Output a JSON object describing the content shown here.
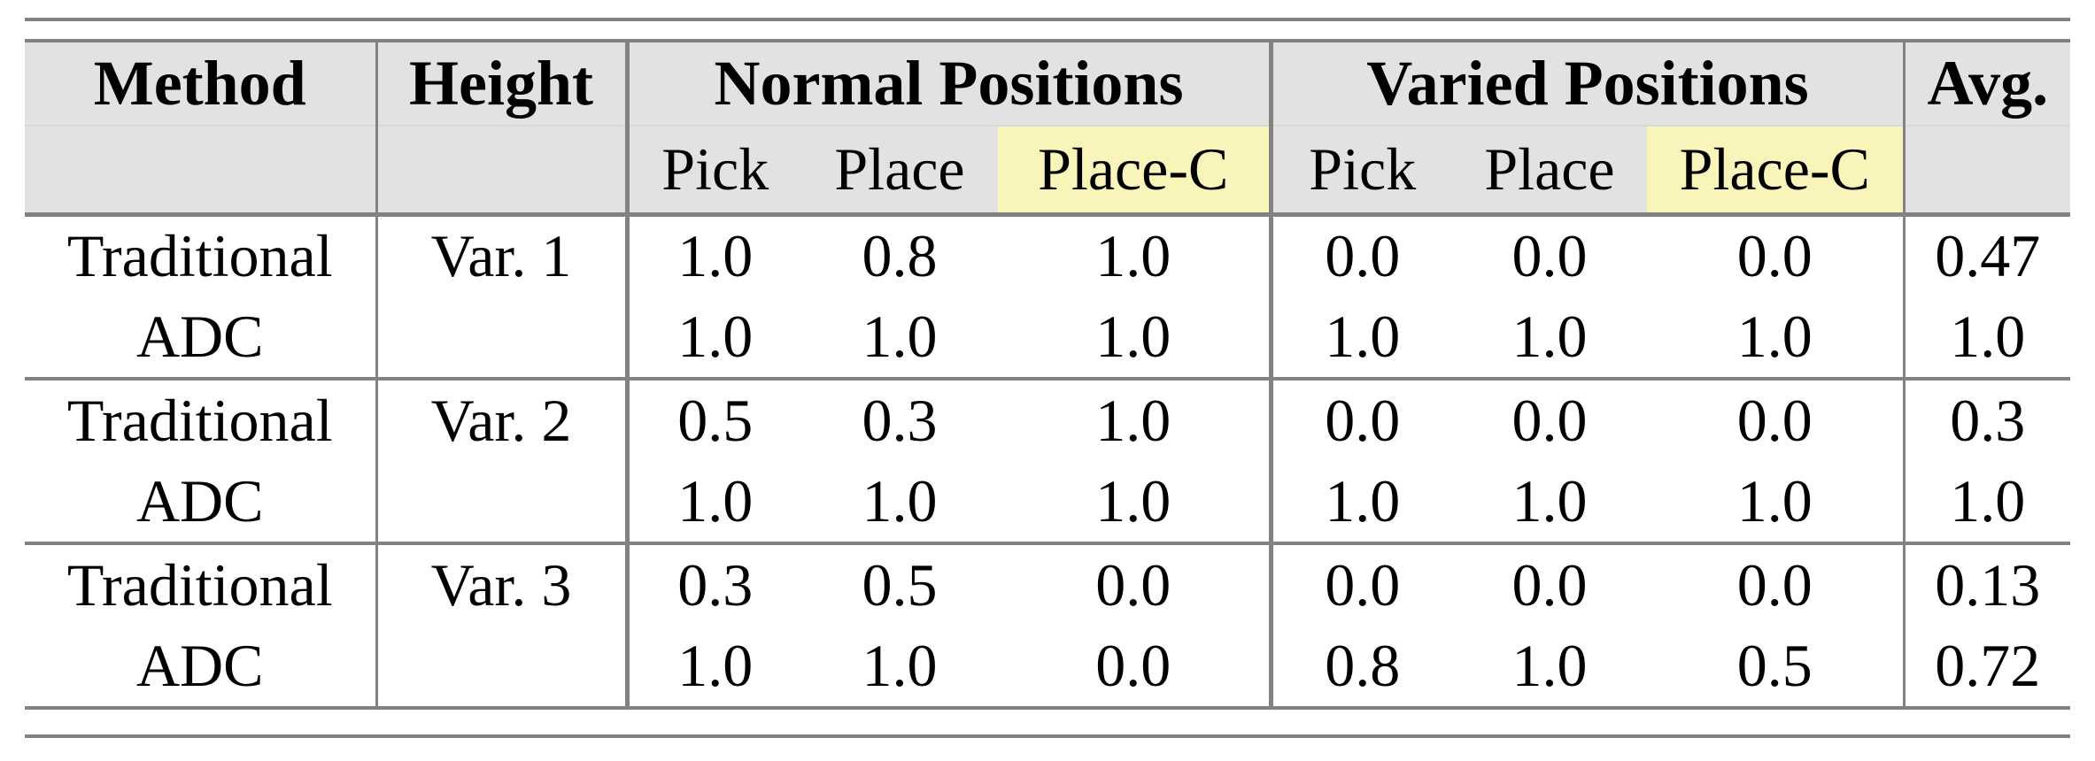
{
  "figure": {
    "kind": "paper-results-table"
  },
  "colors": {
    "header_bg": "#e2e2e2",
    "highlight_bg": "#f8f4ba",
    "rule": "#828282",
    "text": "#000000",
    "page_bg": "#ffffff"
  },
  "table": {
    "header": {
      "method": "Method",
      "height": "Height",
      "groups": [
        {
          "label": "Normal Positions",
          "sub": [
            "Pick",
            "Place",
            "Place-C"
          ]
        },
        {
          "label": "Varied Positions",
          "sub": [
            "Pick",
            "Place",
            "Place-C"
          ]
        }
      ],
      "avg": "Avg."
    },
    "rows": [
      {
        "method": "Traditional",
        "height": "Var. 1",
        "normal": [
          "1.0",
          "0.8",
          "1.0"
        ],
        "varied": [
          "0.0",
          "0.0",
          "0.0"
        ],
        "avg": "0.47"
      },
      {
        "method": "ADC",
        "height": "",
        "normal": [
          "1.0",
          "1.0",
          "1.0"
        ],
        "varied": [
          "1.0",
          "1.0",
          "1.0"
        ],
        "avg": "1.0"
      },
      {
        "method": "Traditional",
        "height": "Var. 2",
        "normal": [
          "0.5",
          "0.3",
          "1.0"
        ],
        "varied": [
          "0.0",
          "0.0",
          "0.0"
        ],
        "avg": "0.3"
      },
      {
        "method": "ADC",
        "height": "",
        "normal": [
          "1.0",
          "1.0",
          "1.0"
        ],
        "varied": [
          "1.0",
          "1.0",
          "1.0"
        ],
        "avg": "1.0"
      },
      {
        "method": "Traditional",
        "height": "Var. 3",
        "normal": [
          "0.3",
          "0.5",
          "0.0"
        ],
        "varied": [
          "0.0",
          "0.0",
          "0.0"
        ],
        "avg": "0.13"
      },
      {
        "method": "ADC",
        "height": "",
        "normal": [
          "1.0",
          "1.0",
          "0.0"
        ],
        "varied": [
          "0.8",
          "1.0",
          "0.5"
        ],
        "avg": "0.72"
      }
    ]
  }
}
